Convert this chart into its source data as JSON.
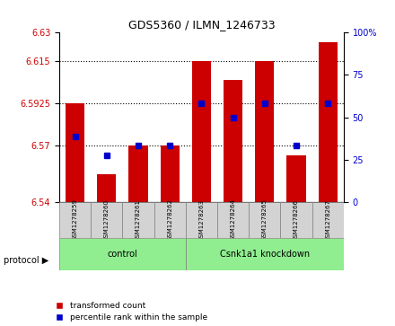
{
  "title": "GDS5360 / ILMN_1246733",
  "samples": [
    "GSM1278259",
    "GSM1278260",
    "GSM1278261",
    "GSM1278262",
    "GSM1278263",
    "GSM1278264",
    "GSM1278265",
    "GSM1278266",
    "GSM1278267"
  ],
  "red_values": [
    6.5925,
    6.555,
    6.57,
    6.57,
    6.615,
    6.605,
    6.615,
    6.565,
    6.625
  ],
  "blue_values": [
    6.575,
    6.565,
    6.57,
    6.57,
    6.5925,
    6.585,
    6.5925,
    6.57,
    6.5925
  ],
  "ylim_left": [
    6.54,
    6.63
  ],
  "ylim_right": [
    0,
    100
  ],
  "yticks_left": [
    6.54,
    6.57,
    6.5925,
    6.615,
    6.63
  ],
  "yticks_left_labels": [
    "6.54",
    "6.57",
    "6.5925",
    "6.615",
    "6.63"
  ],
  "yticks_right": [
    0,
    25,
    50,
    75,
    100
  ],
  "yticks_right_labels": [
    "0",
    "25",
    "50",
    "75",
    "100%"
  ],
  "grid_values": [
    6.615,
    6.5925,
    6.57
  ],
  "control_label": "control",
  "knockdown_label": "Csnk1a1 knockdown",
  "protocol_label": "protocol",
  "legend_red": "transformed count",
  "legend_blue": "percentile rank within the sample",
  "bar_color": "#cc0000",
  "blue_color": "#0000cc",
  "bar_bottom": 6.54,
  "bar_width": 0.6,
  "bg_color": "#ffffff",
  "plot_bg": "#ffffff",
  "grid_color": "#000000",
  "left_color": "#cc0000",
  "right_color": "#0000cc",
  "control_bg": "#90ee90",
  "knockdown_bg": "#90ee90",
  "sample_bg": "#d3d3d3",
  "n_control": 4
}
